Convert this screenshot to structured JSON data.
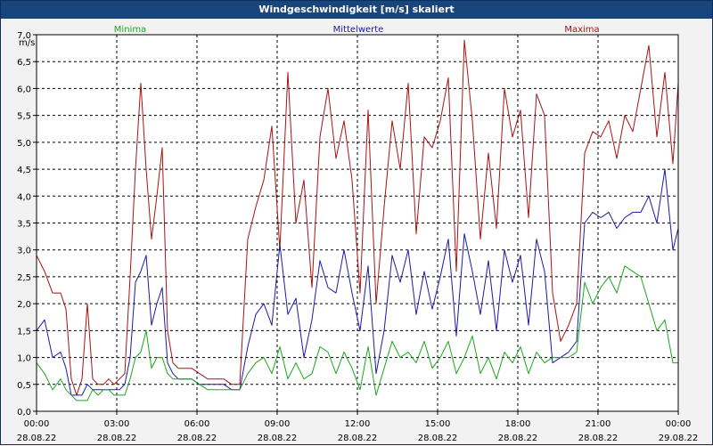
{
  "window": {
    "title": "Windgeschwindigkeit [m/s] skaliert"
  },
  "chart_data": {
    "type": "line",
    "title": "Windgeschwindigkeit [m/s] skaliert",
    "ylabel": "m/s",
    "ylim": [
      0,
      7.0
    ],
    "xlim": [
      0,
      24
    ],
    "yticks": [
      "0,0",
      "0,5",
      "1,0",
      "1,5",
      "2,0",
      "2,5",
      "3,0",
      "3,5",
      "4,0",
      "4,5",
      "5,0",
      "5,5",
      "6,0",
      "6,5",
      "7,0"
    ],
    "xticks": [
      {
        "time": "00:00",
        "date": "28.08.22"
      },
      {
        "time": "03:00",
        "date": "28.08.22"
      },
      {
        "time": "06:00",
        "date": "28.08.22"
      },
      {
        "time": "09:00",
        "date": "28.08.22"
      },
      {
        "time": "12:00",
        "date": "28.08.22"
      },
      {
        "time": "15:00",
        "date": "28.08.22"
      },
      {
        "time": "18:00",
        "date": "28.08.22"
      },
      {
        "time": "21:00",
        "date": "28.08.22"
      },
      {
        "time": "00:00",
        "date": "29.08.22"
      }
    ],
    "grid": true,
    "series": [
      {
        "name": "Maxima",
        "color": "#aa1111",
        "x": [
          0,
          0.3,
          0.6,
          0.9,
          1.1,
          1.3,
          1.5,
          1.7,
          1.9,
          2.1,
          2.3,
          2.5,
          2.7,
          2.9,
          3.1,
          3.3,
          3.5,
          3.7,
          3.9,
          4.1,
          4.3,
          4.5,
          4.7,
          4.9,
          5.1,
          5.3,
          5.5,
          5.8,
          6.1,
          6.4,
          6.7,
          7.0,
          7.3,
          7.6,
          7.9,
          8.2,
          8.5,
          8.8,
          9.1,
          9.4,
          9.7,
          10.0,
          10.3,
          10.6,
          10.9,
          11.2,
          11.5,
          11.8,
          12.1,
          12.4,
          12.7,
          13.0,
          13.3,
          13.6,
          13.9,
          14.2,
          14.5,
          14.8,
          15.1,
          15.4,
          15.7,
          16.0,
          16.3,
          16.6,
          16.9,
          17.2,
          17.5,
          17.8,
          18.1,
          18.4,
          18.7,
          19.0,
          19.3,
          19.6,
          19.9,
          20.2,
          20.5,
          20.8,
          21.1,
          21.4,
          21.7,
          22.0,
          22.3,
          22.6,
          22.9,
          23.2,
          23.5,
          23.8,
          24.0
        ],
        "values": [
          2.9,
          2.6,
          2.2,
          2.2,
          1.9,
          0.6,
          0.3,
          0.6,
          2.0,
          0.6,
          0.5,
          0.5,
          0.6,
          0.5,
          0.6,
          0.7,
          2.5,
          4.5,
          6.1,
          4.5,
          3.2,
          4.0,
          4.9,
          1.5,
          0.9,
          0.8,
          0.8,
          0.8,
          0.7,
          0.6,
          0.6,
          0.6,
          0.5,
          0.5,
          3.2,
          3.8,
          4.3,
          5.3,
          3.0,
          6.3,
          3.5,
          4.3,
          2.3,
          5.1,
          6.0,
          4.7,
          5.4,
          4.3,
          2.2,
          5.6,
          2.0,
          3.8,
          5.4,
          4.5,
          6.1,
          3.3,
          5.1,
          4.9,
          5.4,
          6.2,
          2.6,
          6.9,
          5.4,
          3.2,
          4.8,
          3.4,
          6.0,
          5.1,
          5.6,
          3.6,
          5.9,
          5.5,
          2.2,
          1.3,
          1.6,
          2.0,
          4.8,
          5.2,
          5.1,
          5.4,
          4.7,
          5.5,
          5.2,
          6.0,
          6.8,
          5.1,
          6.3,
          4.6,
          6.1
        ]
      },
      {
        "name": "Mittelwerte",
        "color": "#1a1aa8",
        "x": [
          0,
          0.3,
          0.6,
          0.9,
          1.1,
          1.3,
          1.5,
          1.7,
          1.9,
          2.1,
          2.3,
          2.5,
          2.7,
          2.9,
          3.1,
          3.3,
          3.5,
          3.7,
          3.9,
          4.1,
          4.3,
          4.5,
          4.7,
          4.9,
          5.1,
          5.3,
          5.5,
          5.8,
          6.1,
          6.4,
          6.7,
          7.0,
          7.3,
          7.6,
          7.9,
          8.2,
          8.5,
          8.8,
          9.1,
          9.4,
          9.7,
          10.0,
          10.3,
          10.6,
          10.9,
          11.2,
          11.5,
          11.8,
          12.1,
          12.4,
          12.7,
          13.0,
          13.3,
          13.6,
          13.9,
          14.2,
          14.5,
          14.8,
          15.1,
          15.4,
          15.7,
          16.0,
          16.3,
          16.6,
          16.9,
          17.2,
          17.5,
          17.8,
          18.1,
          18.4,
          18.7,
          19.0,
          19.3,
          19.6,
          19.9,
          20.2,
          20.5,
          20.8,
          21.1,
          21.4,
          21.7,
          22.0,
          22.3,
          22.6,
          22.9,
          23.2,
          23.5,
          23.8,
          24.0
        ],
        "values": [
          1.5,
          1.7,
          1.0,
          1.1,
          0.8,
          0.3,
          0.3,
          0.3,
          0.5,
          0.4,
          0.4,
          0.4,
          0.4,
          0.4,
          0.4,
          0.5,
          1.0,
          2.4,
          2.6,
          2.9,
          1.6,
          2.0,
          2.3,
          0.9,
          0.7,
          0.6,
          0.6,
          0.6,
          0.5,
          0.5,
          0.5,
          0.5,
          0.4,
          0.4,
          1.2,
          1.8,
          2.0,
          1.6,
          3.1,
          1.8,
          2.1,
          1.0,
          1.7,
          2.8,
          2.3,
          2.2,
          3.0,
          2.2,
          1.5,
          2.7,
          0.7,
          1.5,
          2.9,
          2.4,
          3.0,
          1.8,
          2.6,
          1.9,
          2.5,
          3.2,
          1.4,
          3.3,
          2.6,
          1.8,
          2.8,
          1.5,
          3.0,
          2.4,
          2.9,
          1.6,
          3.2,
          2.6,
          0.9,
          1.0,
          1.1,
          1.3,
          3.5,
          3.7,
          3.6,
          3.7,
          3.4,
          3.6,
          3.7,
          3.7,
          4.0,
          3.5,
          4.5,
          3.0,
          3.4
        ]
      },
      {
        "name": "Minima",
        "color": "#1aa81a",
        "x": [
          0,
          0.3,
          0.6,
          0.9,
          1.1,
          1.3,
          1.5,
          1.7,
          1.9,
          2.1,
          2.3,
          2.5,
          2.7,
          2.9,
          3.1,
          3.3,
          3.5,
          3.7,
          3.9,
          4.1,
          4.3,
          4.5,
          4.7,
          4.9,
          5.1,
          5.3,
          5.5,
          5.8,
          6.1,
          6.4,
          6.7,
          7.0,
          7.3,
          7.6,
          7.9,
          8.2,
          8.5,
          8.8,
          9.1,
          9.4,
          9.7,
          10.0,
          10.3,
          10.6,
          10.9,
          11.2,
          11.5,
          11.8,
          12.1,
          12.4,
          12.7,
          13.0,
          13.3,
          13.6,
          13.9,
          14.2,
          14.5,
          14.8,
          15.1,
          15.4,
          15.7,
          16.0,
          16.3,
          16.6,
          16.9,
          17.2,
          17.5,
          17.8,
          18.1,
          18.4,
          18.7,
          19.0,
          19.3,
          19.6,
          19.9,
          20.2,
          20.5,
          20.8,
          21.1,
          21.4,
          21.7,
          22.0,
          22.3,
          22.6,
          22.9,
          23.2,
          23.5,
          23.8,
          24.0
        ],
        "values": [
          0.9,
          0.7,
          0.4,
          0.6,
          0.4,
          0.3,
          0.2,
          0.2,
          0.2,
          0.4,
          0.3,
          0.4,
          0.4,
          0.3,
          0.3,
          0.3,
          0.6,
          1.0,
          1.1,
          1.5,
          0.8,
          1.0,
          1.0,
          0.7,
          0.6,
          0.6,
          0.6,
          0.6,
          0.5,
          0.4,
          0.4,
          0.4,
          0.4,
          0.4,
          0.7,
          0.9,
          1.0,
          0.7,
          1.2,
          0.6,
          0.9,
          0.6,
          0.7,
          1.2,
          1.1,
          0.7,
          1.1,
          0.8,
          0.4,
          1.2,
          0.3,
          0.8,
          1.3,
          1.0,
          1.1,
          0.9,
          1.3,
          0.8,
          1.0,
          1.3,
          0.7,
          1.0,
          1.4,
          0.7,
          1.0,
          0.6,
          1.1,
          0.9,
          1.2,
          0.7,
          1.1,
          0.9,
          1.0,
          1.0,
          1.0,
          1.1,
          2.4,
          2.0,
          2.3,
          2.5,
          2.2,
          2.7,
          2.6,
          2.5,
          2.0,
          1.5,
          1.7,
          0.9,
          0.9
        ]
      }
    ]
  }
}
